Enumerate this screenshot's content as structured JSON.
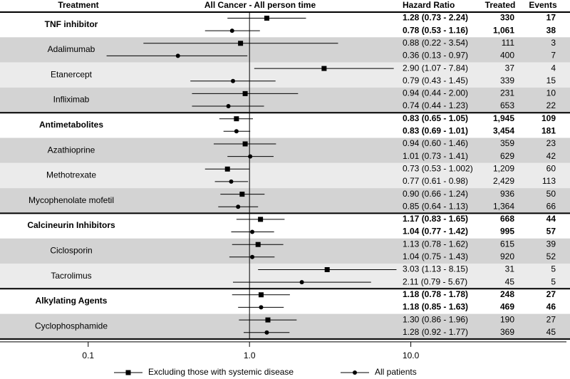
{
  "chart_data": {
    "type": "forest",
    "columns": {
      "treatment": "Treatment",
      "plot": "All Cancer - All person time",
      "hr": "Hazard Ratio",
      "treated": "Treated",
      "events": "Events"
    },
    "xscale": "log",
    "xlim": [
      0.0284,
      97
    ],
    "xticks": [
      0.1,
      {
        "value": 1,
        "label": "1.0"
      },
      {
        "value": 10,
        "label": "10.0"
      }
    ],
    "color": "#000000",
    "series": [
      {
        "name": "Excluding those with systemic disease",
        "marker": "square"
      },
      {
        "name": "All patients",
        "marker": "circle"
      }
    ],
    "groups": [
      {
        "label": "TNF inhibitor",
        "bold": true,
        "fill": "#ffffff",
        "rows": [
          {
            "value": 1.28,
            "lower": 0.73,
            "upper": 2.24,
            "label": "1.28 (0.73 - 2.24)",
            "treated": "330",
            "events": 17
          },
          {
            "value": 0.78,
            "lower": 0.53,
            "upper": 1.16,
            "label": "0.78 (0.53 - 1.16)",
            "treated": "1,061",
            "events": 38
          }
        ]
      },
      {
        "label": "Adalimumab",
        "bold": false,
        "fill": "#d3d3d3",
        "rows": [
          {
            "value": 0.88,
            "lower": 0.22,
            "upper": 3.54,
            "label": "0.88 (0.22 - 3.54)",
            "treated": "111",
            "events": 3
          },
          {
            "value": 0.36,
            "lower": 0.13,
            "upper": 0.97,
            "label": "0.36 (0.13 - 0.97)",
            "treated": "400",
            "events": 7
          }
        ]
      },
      {
        "label": "Etanercept",
        "bold": false,
        "fill": "#ebebeb",
        "rows": [
          {
            "value": 2.9,
            "lower": 1.07,
            "upper": 7.84,
            "label": "2.90 (1.07 - 7.84)",
            "treated": "37",
            "events": 4
          },
          {
            "value": 0.79,
            "lower": 0.43,
            "upper": 1.45,
            "label": "0.79 (0.43 - 1.45)",
            "treated": "339",
            "events": 15
          }
        ]
      },
      {
        "label": "Infliximab",
        "bold": false,
        "fill": "#d3d3d3",
        "rows": [
          {
            "value": 0.94,
            "lower": 0.44,
            "upper": 2.0,
            "label": "0.94 (0.44 - 2.00)",
            "treated": "231",
            "events": 10
          },
          {
            "value": 0.74,
            "lower": 0.44,
            "upper": 1.23,
            "label": "0.74 (0.44 - 1.23)",
            "treated": "653",
            "events": 22
          }
        ]
      },
      {
        "label": "Antimetabolites",
        "bold": true,
        "fill": "#ffffff",
        "rows": [
          {
            "value": 0.83,
            "lower": 0.65,
            "upper": 1.05,
            "label": "0.83 (0.65 - 1.05)",
            "treated": "1,945",
            "events": 109
          },
          {
            "value": 0.83,
            "lower": 0.69,
            "upper": 1.01,
            "label": "0.83 (0.69 - 1.01)",
            "treated": "3,454",
            "events": 181
          }
        ]
      },
      {
        "label": "Azathioprine",
        "bold": false,
        "fill": "#d3d3d3",
        "rows": [
          {
            "value": 0.94,
            "lower": 0.6,
            "upper": 1.46,
            "label": "0.94 (0.60 - 1.46)",
            "treated": "359",
            "events": 23
          },
          {
            "value": 1.01,
            "lower": 0.73,
            "upper": 1.41,
            "label": "1.01 (0.73 - 1.41)",
            "treated": "629",
            "events": 42
          }
        ]
      },
      {
        "label": "Methotrexate",
        "bold": false,
        "fill": "#ebebeb",
        "rows": [
          {
            "value": 0.73,
            "lower": 0.53,
            "upper": 1.002,
            "label": "0.73 (0.53 - 1.002)",
            "treated": "1,209",
            "events": 60
          },
          {
            "value": 0.77,
            "lower": 0.61,
            "upper": 0.98,
            "label": "0.77 (0.61 - 0.98)",
            "treated": "2,429",
            "events": 113
          }
        ]
      },
      {
        "label": "Mycophenolate mofetil",
        "bold": false,
        "fill": "#d3d3d3",
        "rows": [
          {
            "value": 0.9,
            "lower": 0.66,
            "upper": 1.24,
            "label": "0.90 (0.66 - 1.24)",
            "treated": "936",
            "events": 50
          },
          {
            "value": 0.85,
            "lower": 0.64,
            "upper": 1.13,
            "label": "0.85 (0.64 - 1.13)",
            "treated": "1,364",
            "events": 66
          }
        ]
      },
      {
        "label": "Calcineurin Inhibitors",
        "bold": true,
        "fill": "#ffffff",
        "rows": [
          {
            "value": 1.17,
            "lower": 0.83,
            "upper": 1.65,
            "label": "1.17 (0.83 - 1.65)",
            "treated": "668",
            "events": 44
          },
          {
            "value": 1.04,
            "lower": 0.77,
            "upper": 1.42,
            "label": "1.04 (0.77 - 1.42)",
            "treated": "995",
            "events": 57
          }
        ]
      },
      {
        "label": "Ciclosporin",
        "bold": false,
        "fill": "#d3d3d3",
        "rows": [
          {
            "value": 1.13,
            "lower": 0.78,
            "upper": 1.62,
            "label": "1.13 (0.78 - 1.62)",
            "treated": "615",
            "events": 39
          },
          {
            "value": 1.04,
            "lower": 0.75,
            "upper": 1.43,
            "label": "1.04 (0.75 - 1.43)",
            "treated": "920",
            "events": 52
          }
        ]
      },
      {
        "label": "Tacrolimus",
        "bold": false,
        "fill": "#ebebeb",
        "rows": [
          {
            "value": 3.03,
            "lower": 1.13,
            "upper": 8.15,
            "label": "3.03 (1.13 - 8.15)",
            "treated": "31",
            "events": 5
          },
          {
            "value": 2.11,
            "lower": 0.79,
            "upper": 5.67,
            "label": "2.11 (0.79 - 5.67)",
            "treated": "45",
            "events": 5
          }
        ]
      },
      {
        "label": "Alkylating Agents",
        "bold": true,
        "fill": "#ffffff",
        "rows": [
          {
            "value": 1.18,
            "lower": 0.78,
            "upper": 1.78,
            "label": "1.18 (0.78 - 1.78)",
            "treated": "248",
            "events": 27
          },
          {
            "value": 1.18,
            "lower": 0.85,
            "upper": 1.63,
            "label": "1.18 (0.85 - 1.63)",
            "treated": "469",
            "events": 46
          }
        ]
      },
      {
        "label": "Cyclophosphamide",
        "bold": false,
        "fill": "#d3d3d3",
        "rows": [
          {
            "value": 1.3,
            "lower": 0.86,
            "upper": 1.96,
            "label": "1.30 (0.86 - 1.96)",
            "treated": "190",
            "events": 27
          },
          {
            "value": 1.28,
            "lower": 0.92,
            "upper": 1.77,
            "label": "1.28 (0.92 - 1.77)",
            "treated": "369",
            "events": 45
          }
        ]
      }
    ]
  }
}
